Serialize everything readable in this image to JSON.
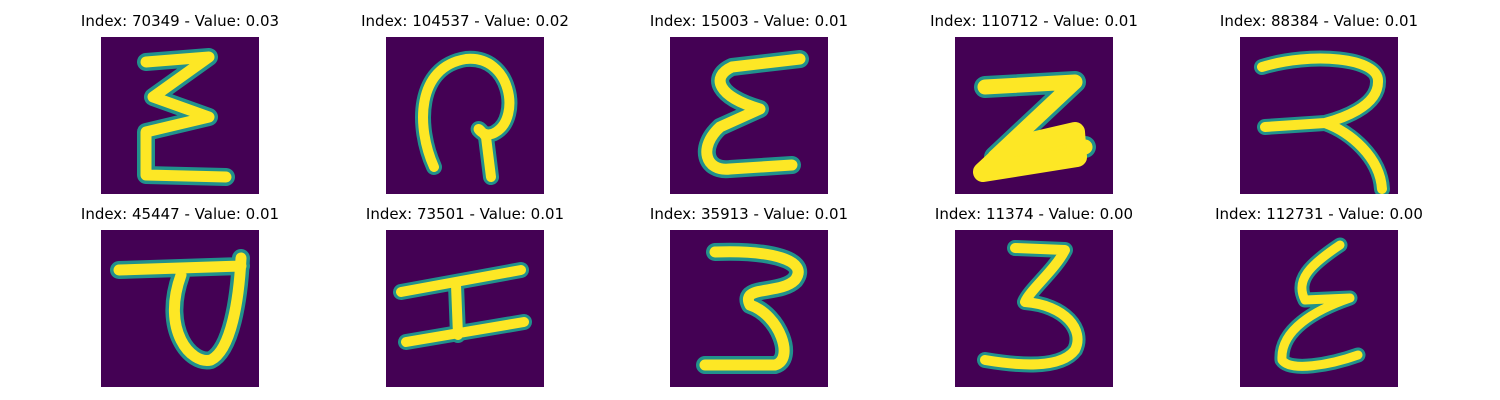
{
  "grid": {
    "cells": [
      {
        "title": "Index: 70349 - Value: 0.03"
      },
      {
        "title": "Index: 104537 - Value: 0.02"
      },
      {
        "title": "Index: 15003 - Value: 0.01"
      },
      {
        "title": "Index: 110712 - Value: 0.01"
      },
      {
        "title": "Index: 88384 - Value: 0.01"
      },
      {
        "title": "Index: 45447 - Value: 0.01"
      },
      {
        "title": "Index: 73501 - Value: 0.01"
      },
      {
        "title": "Index: 35913 - Value: 0.01"
      },
      {
        "title": "Index: 11374 - Value: 0.00"
      },
      {
        "title": "Index: 112731 - Value: 0.00"
      }
    ]
  },
  "colors": {
    "background": "#440154",
    "mid": "#21918c",
    "foreground": "#fde725"
  }
}
